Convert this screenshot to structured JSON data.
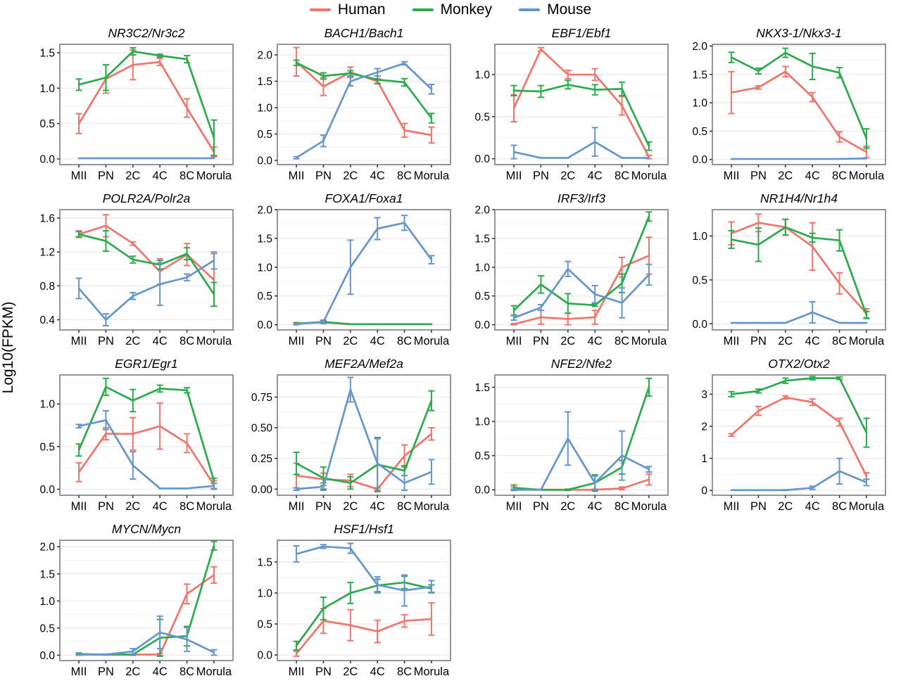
{
  "figure": {
    "ylabel": "Log10(FPKM)"
  },
  "legend": {
    "items": [
      {
        "label": "Human",
        "color": "#f0756d"
      },
      {
        "label": "Monkey",
        "color": "#2bab4d"
      },
      {
        "label": "Mouse",
        "color": "#6696cc"
      }
    ]
  },
  "categories": [
    "MII",
    "PN",
    "2C",
    "4C",
    "8C",
    "Morula"
  ],
  "chart_data": [
    {
      "type": "line",
      "title": "NR3C2/Nr3c2",
      "ylim": [
        -0.08,
        1.62
      ],
      "yticks": {
        "values": [
          0,
          0.5,
          1.0,
          1.5
        ],
        "labels": [
          "0.0",
          "0.5",
          "1.0",
          "1.5"
        ]
      },
      "series": [
        {
          "name": "Human",
          "values": [
            0.5,
            1.13,
            1.33,
            1.37,
            0.72,
            0.1
          ],
          "err": [
            0.14,
            0.2,
            0.21,
            0.05,
            0.13,
            0.07
          ]
        },
        {
          "name": "Monkey",
          "values": [
            1.05,
            1.15,
            1.52,
            1.46,
            1.41,
            0.3
          ],
          "err": [
            0.08,
            0.18,
            0.05,
            0.02,
            0.05,
            0.25
          ]
        },
        {
          "name": "Mouse",
          "values": [
            0.01,
            0.01,
            0.01,
            0.01,
            0.01,
            0.01
          ],
          "err": [
            0,
            0,
            0,
            0,
            0,
            0
          ]
        }
      ]
    },
    {
      "type": "line",
      "title": "BACH1/Bach1",
      "ylim": [
        -0.08,
        2.2
      ],
      "yticks": {
        "values": [
          0,
          0.5,
          1.0,
          1.5,
          2.0
        ],
        "labels": [
          "0.0",
          "0.5",
          "1.0",
          "1.5",
          "2.0"
        ]
      },
      "series": [
        {
          "name": "Human",
          "values": [
            1.87,
            1.4,
            1.67,
            1.5,
            0.57,
            0.48
          ],
          "err": [
            0.27,
            0.17,
            0.1,
            0.05,
            0.13,
            0.15
          ]
        },
        {
          "name": "Monkey",
          "values": [
            1.85,
            1.6,
            1.65,
            1.53,
            1.48,
            0.8
          ],
          "err": [
            0.05,
            0.06,
            0.05,
            0.07,
            0.07,
            0.09
          ]
        },
        {
          "name": "Mouse",
          "values": [
            0.05,
            0.37,
            1.5,
            1.67,
            1.84,
            1.35
          ],
          "err": [
            0.02,
            0.11,
            0.09,
            0.07,
            0.03,
            0.09
          ]
        }
      ]
    },
    {
      "type": "line",
      "title": "EBF1/Ebf1",
      "ylim": [
        -0.07,
        1.36
      ],
      "yticks": {
        "values": [
          0,
          0.5,
          1.0
        ],
        "labels": [
          "0.0",
          "0.5",
          "1.0"
        ]
      },
      "series": [
        {
          "name": "Human",
          "values": [
            0.6,
            1.3,
            1.0,
            1.0,
            0.63,
            0.02
          ],
          "err": [
            0.16,
            0.02,
            0.05,
            0.07,
            0.11,
            0.02
          ]
        },
        {
          "name": "Monkey",
          "values": [
            0.81,
            0.8,
            0.88,
            0.82,
            0.83,
            0.15
          ],
          "err": [
            0.06,
            0.07,
            0.05,
            0.06,
            0.08,
            0.05
          ]
        },
        {
          "name": "Mouse",
          "values": [
            0.08,
            0.01,
            0.01,
            0.2,
            0.01,
            0.01
          ],
          "err": [
            0.08,
            0,
            0,
            0.17,
            0,
            0
          ]
        }
      ]
    },
    {
      "type": "line",
      "title": "NKX3-1/Nkx3-1",
      "ylim": [
        -0.09,
        2.03
      ],
      "yticks": {
        "values": [
          0,
          0.5,
          1.0,
          1.5,
          2.0
        ],
        "labels": [
          "0.0",
          "0.5",
          "1.0",
          "1.5",
          "2.0"
        ]
      },
      "series": [
        {
          "name": "Human",
          "values": [
            1.18,
            1.27,
            1.55,
            1.1,
            0.4,
            0.13
          ],
          "err": [
            0.37,
            0.03,
            0.09,
            0.08,
            0.09,
            0.1
          ]
        },
        {
          "name": "Monkey",
          "values": [
            1.8,
            1.56,
            1.88,
            1.64,
            1.53,
            0.37
          ],
          "err": [
            0.09,
            0.05,
            0.08,
            0.23,
            0.09,
            0.17
          ]
        },
        {
          "name": "Mouse",
          "values": [
            0.01,
            0.01,
            0.01,
            0.01,
            0.01,
            0.02
          ],
          "err": [
            0,
            0,
            0,
            0,
            0,
            0
          ]
        }
      ]
    },
    {
      "type": "line",
      "title": "POLR2A/Polr2a",
      "ylim": [
        0.28,
        1.7
      ],
      "yticks": {
        "values": [
          0.4,
          0.8,
          1.2,
          1.6
        ],
        "labels": [
          "0.4",
          "0.8",
          "1.2",
          "1.6"
        ]
      },
      "series": [
        {
          "name": "Human",
          "values": [
            1.41,
            1.51,
            1.3,
            0.97,
            1.17,
            0.87
          ],
          "err": [
            0.04,
            0.13,
            0.02,
            0.15,
            0.13,
            0.31
          ]
        },
        {
          "name": "Monkey",
          "values": [
            1.41,
            1.33,
            1.11,
            1.05,
            1.18,
            0.7
          ],
          "err": [
            0.03,
            0.12,
            0.04,
            0.05,
            0.07,
            0.14
          ]
        },
        {
          "name": "Mouse",
          "values": [
            0.77,
            0.4,
            0.68,
            0.82,
            0.9,
            1.1
          ],
          "err": [
            0.12,
            0.07,
            0.04,
            0.25,
            0.04,
            0.1
          ]
        }
      ]
    },
    {
      "type": "line",
      "title": "FOXA1/Foxa1",
      "ylim": [
        -0.09,
        2.0
      ],
      "yticks": {
        "values": [
          0,
          0.5,
          1.0,
          1.5,
          2.0
        ],
        "labels": [
          "0.0",
          "0.5",
          "1.0",
          "1.5",
          "2.0"
        ]
      },
      "series": [
        {
          "name": "Human",
          "values": [
            0.02,
            0.04,
            0.01,
            0.01,
            0.01,
            0.01
          ],
          "err": [
            0.02,
            0.02,
            0,
            0,
            0,
            0
          ]
        },
        {
          "name": "Monkey",
          "values": [
            0.02,
            0.05,
            0.01,
            0.01,
            0.01,
            0.01
          ],
          "err": [
            0.01,
            0.02,
            0,
            0,
            0,
            0
          ]
        },
        {
          "name": "Mouse",
          "values": [
            0.01,
            0.05,
            1.0,
            1.67,
            1.77,
            1.13
          ],
          "err": [
            0.01,
            0.03,
            0.47,
            0.19,
            0.13,
            0.07
          ]
        }
      ]
    },
    {
      "type": "line",
      "title": "IRF3/Irf3",
      "ylim": [
        -0.09,
        2.0
      ],
      "yticks": {
        "values": [
          0,
          0.5,
          1.0,
          1.5,
          2.0
        ],
        "labels": [
          "0.0",
          "0.5",
          "1.0",
          "1.5",
          "2.0"
        ]
      },
      "series": [
        {
          "name": "Human",
          "values": [
            0.01,
            0.13,
            0.1,
            0.13,
            1.0,
            1.2
          ],
          "err": [
            0.01,
            0.12,
            0.1,
            0.12,
            0.17,
            0.32
          ]
        },
        {
          "name": "Monkey",
          "values": [
            0.25,
            0.7,
            0.37,
            0.34,
            0.72,
            1.88
          ],
          "err": [
            0.08,
            0.15,
            0.17,
            0.02,
            0.16,
            0.08
          ]
        },
        {
          "name": "Mouse",
          "values": [
            0.12,
            0.3,
            0.97,
            0.53,
            0.38,
            0.87
          ],
          "err": [
            0.04,
            0.05,
            0.13,
            0.15,
            0.26,
            0.18
          ]
        }
      ]
    },
    {
      "type": "line",
      "title": "NR1H4/Nr1h4",
      "ylim": [
        -0.07,
        1.3
      ],
      "yticks": {
        "values": [
          0,
          0.5,
          1.0
        ],
        "labels": [
          "0.0",
          "0.5",
          "1.0"
        ]
      },
      "series": [
        {
          "name": "Human",
          "values": [
            1.03,
            1.15,
            1.1,
            0.88,
            0.46,
            0.12
          ],
          "err": [
            0.13,
            0.1,
            0.09,
            0.27,
            0.12,
            0.05
          ]
        },
        {
          "name": "Monkey",
          "values": [
            0.96,
            0.9,
            1.1,
            0.98,
            0.95,
            0.1
          ],
          "err": [
            0.1,
            0.19,
            0.09,
            0.05,
            0.12,
            0.04
          ]
        },
        {
          "name": "Mouse",
          "values": [
            0.01,
            0.01,
            0.01,
            0.13,
            0.01,
            0.01
          ],
          "err": [
            0,
            0,
            0,
            0.12,
            0,
            0
          ]
        }
      ]
    },
    {
      "type": "line",
      "title": "EGR1/Egr1",
      "ylim": [
        -0.07,
        1.34
      ],
      "yticks": {
        "values": [
          0,
          0.5,
          1.0
        ],
        "labels": [
          "0.0",
          "0.5",
          "1.0"
        ]
      },
      "series": [
        {
          "name": "Human",
          "values": [
            0.2,
            0.65,
            0.65,
            0.74,
            0.54,
            0.05
          ],
          "err": [
            0.11,
            0.07,
            0.19,
            0.27,
            0.11,
            0.05
          ]
        },
        {
          "name": "Monkey",
          "values": [
            0.46,
            1.2,
            1.04,
            1.18,
            1.16,
            0.1
          ],
          "err": [
            0.07,
            0.1,
            0.13,
            0.04,
            0.03,
            0.03
          ]
        },
        {
          "name": "Mouse",
          "values": [
            0.74,
            0.81,
            0.28,
            0.01,
            0.01,
            0.04
          ],
          "err": [
            0.02,
            0.11,
            0.16,
            0,
            0,
            0.03
          ]
        }
      ]
    },
    {
      "type": "line",
      "title": "MEF2A/Mef2a",
      "ylim": [
        -0.05,
        0.93
      ],
      "yticks": {
        "values": [
          0,
          0.25,
          0.5,
          0.75
        ],
        "labels": [
          "0.00",
          "0.25",
          "0.50",
          "0.75"
        ]
      },
      "series": [
        {
          "name": "Human",
          "values": [
            0.11,
            0.08,
            0.07,
            0.0,
            0.27,
            0.45
          ],
          "err": [
            0.1,
            0.05,
            0.05,
            0.01,
            0.09,
            0.05
          ]
        },
        {
          "name": "Monkey",
          "values": [
            0.21,
            0.09,
            0.05,
            0.2,
            0.15,
            0.72
          ],
          "err": [
            0.09,
            0.09,
            0.05,
            0.22,
            0.04,
            0.08
          ]
        },
        {
          "name": "Mouse",
          "values": [
            0.0,
            0.02,
            0.81,
            0.21,
            0.05,
            0.14
          ],
          "err": [
            0.01,
            0.03,
            0.1,
            0.2,
            0.06,
            0.1
          ]
        }
      ]
    },
    {
      "type": "line",
      "title": "NFE2/Nfe2",
      "ylim": [
        -0.08,
        1.68
      ],
      "yticks": {
        "values": [
          0,
          0.5,
          1.0,
          1.5
        ],
        "labels": [
          "0.0",
          "0.5",
          "1.0",
          "1.5"
        ]
      },
      "series": [
        {
          "name": "Human",
          "values": [
            0.02,
            0.0,
            0.0,
            0.0,
            0.02,
            0.15
          ],
          "err": [
            0.02,
            0,
            0,
            0.01,
            0.02,
            0.08
          ]
        },
        {
          "name": "Monkey",
          "values": [
            0.03,
            0.0,
            0.0,
            0.1,
            0.33,
            1.5
          ],
          "err": [
            0.04,
            0,
            0.01,
            0.12,
            0.1,
            0.13
          ]
        },
        {
          "name": "Mouse",
          "values": [
            0.0,
            0.0,
            0.75,
            0.1,
            0.5,
            0.3
          ],
          "err": [
            0.01,
            0,
            0.39,
            0.1,
            0.36,
            0.04
          ]
        }
      ]
    },
    {
      "type": "line",
      "title": "OTX2/Otx2",
      "ylim": [
        -0.15,
        3.6
      ],
      "yticks": {
        "values": [
          0,
          1,
          2,
          3
        ],
        "labels": [
          "0",
          "1",
          "2",
          "3"
        ]
      },
      "series": [
        {
          "name": "Human",
          "values": [
            1.73,
            2.48,
            2.9,
            2.75,
            2.13,
            0.45
          ],
          "err": [
            0.04,
            0.14,
            0.05,
            0.1,
            0.12,
            0.1
          ]
        },
        {
          "name": "Monkey",
          "values": [
            3.0,
            3.1,
            3.42,
            3.5,
            3.5,
            1.8
          ],
          "err": [
            0.08,
            0.06,
            0.08,
            0.05,
            0.04,
            0.45
          ]
        },
        {
          "name": "Mouse",
          "values": [
            0.01,
            0.01,
            0.01,
            0.08,
            0.6,
            0.25
          ],
          "err": [
            0,
            0,
            0.01,
            0.05,
            0.4,
            0.1
          ]
        }
      ]
    },
    {
      "type": "line",
      "title": "MYCN/Mycn",
      "ylim": [
        -0.1,
        2.12
      ],
      "yticks": {
        "values": [
          0,
          0.5,
          1.0,
          1.5,
          2.0
        ],
        "labels": [
          "0.0",
          "0.5",
          "1.0",
          "1.5",
          "2.0"
        ]
      },
      "series": [
        {
          "name": "Human",
          "values": [
            0.01,
            0.01,
            0.01,
            0.01,
            1.13,
            1.48
          ],
          "err": [
            0.01,
            0,
            0.01,
            0.02,
            0.18,
            0.15
          ]
        },
        {
          "name": "Monkey",
          "values": [
            0.02,
            0.01,
            0.01,
            0.32,
            0.35,
            2.02
          ],
          "err": [
            0.02,
            0,
            0.01,
            0.34,
            0.18,
            0.08
          ]
        },
        {
          "name": "Mouse",
          "values": [
            0.01,
            0.01,
            0.07,
            0.42,
            0.29,
            0.05
          ],
          "err": [
            0.01,
            0.01,
            0.05,
            0.3,
            0.22,
            0.05
          ]
        }
      ]
    },
    {
      "type": "line",
      "title": "HSF1/Hsf1",
      "ylim": [
        -0.09,
        1.85
      ],
      "yticks": {
        "values": [
          0,
          0.5,
          1.0,
          1.5
        ],
        "labels": [
          "0.0",
          "0.5",
          "1.0",
          "1.5"
        ]
      },
      "series": [
        {
          "name": "Human",
          "values": [
            0.02,
            0.55,
            0.48,
            0.38,
            0.55,
            0.58
          ],
          "err": [
            0.04,
            0.2,
            0.25,
            0.18,
            0.1,
            0.26
          ]
        },
        {
          "name": "Monkey",
          "values": [
            0.15,
            0.75,
            1.0,
            1.12,
            1.17,
            1.07
          ],
          "err": [
            0.07,
            0.18,
            0.17,
            0.1,
            0.1,
            0.06
          ]
        },
        {
          "name": "Mouse",
          "values": [
            1.63,
            1.75,
            1.72,
            1.13,
            1.04,
            1.1
          ],
          "err": [
            0.13,
            0.03,
            0.08,
            0.13,
            0.25,
            0.1
          ]
        }
      ]
    }
  ]
}
